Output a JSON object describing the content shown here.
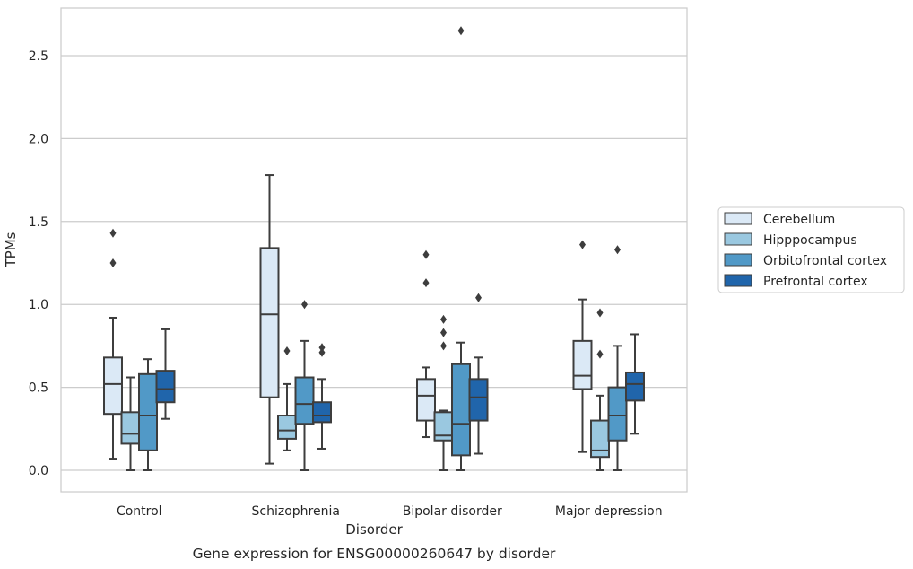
{
  "chart_data": {
    "type": "box",
    "title": "Gene expression for ENSG00000260647 by disorder",
    "xlabel": "Disorder",
    "ylabel": "TPMs",
    "ylim": [
      -0.13,
      2.79
    ],
    "yticks": [
      0.0,
      0.5,
      1.0,
      1.5,
      2.0,
      2.5
    ],
    "ytick_labels": [
      "0.0",
      "0.5",
      "1.0",
      "1.5",
      "2.0",
      "2.5"
    ],
    "grid": "horizontal",
    "legend_position": "right",
    "categories": [
      "Control",
      "Schizophrenia",
      "Bipolar disorder",
      "Major depression"
    ],
    "series": [
      {
        "name": "Cerebellum",
        "color": "#dbe9f6",
        "boxes": [
          {
            "whislo": 0.07,
            "q1": 0.34,
            "med": 0.52,
            "q3": 0.68,
            "whishi": 0.92,
            "fliers": [
              1.25,
              1.43
            ]
          },
          {
            "whislo": 0.04,
            "q1": 0.44,
            "med": 0.94,
            "q3": 1.34,
            "whishi": 1.78,
            "fliers": []
          },
          {
            "whislo": 0.2,
            "q1": 0.3,
            "med": 0.45,
            "q3": 0.55,
            "whishi": 0.62,
            "fliers": [
              1.13,
              1.3
            ]
          },
          {
            "whislo": 0.11,
            "q1": 0.49,
            "med": 0.57,
            "q3": 0.78,
            "whishi": 1.03,
            "fliers": [
              1.36
            ]
          }
        ]
      },
      {
        "name": "Hipppocampus",
        "color": "#9ac8e0",
        "boxes": [
          {
            "whislo": 0.0,
            "q1": 0.16,
            "med": 0.22,
            "q3": 0.35,
            "whishi": 0.56,
            "fliers": []
          },
          {
            "whislo": 0.12,
            "q1": 0.19,
            "med": 0.24,
            "q3": 0.33,
            "whishi": 0.52,
            "fliers": [
              0.72
            ]
          },
          {
            "whislo": 0.0,
            "q1": 0.18,
            "med": 0.21,
            "q3": 0.35,
            "whishi": 0.36,
            "fliers": [
              0.75,
              0.83,
              0.91
            ]
          },
          {
            "whislo": 0.0,
            "q1": 0.08,
            "med": 0.12,
            "q3": 0.3,
            "whishi": 0.45,
            "fliers": [
              0.7,
              0.95
            ]
          }
        ]
      },
      {
        "name": "Orbitofrontal cortex",
        "color": "#5199c7",
        "boxes": [
          {
            "whislo": 0.0,
            "q1": 0.12,
            "med": 0.33,
            "q3": 0.58,
            "whishi": 0.67,
            "fliers": []
          },
          {
            "whislo": 0.0,
            "q1": 0.28,
            "med": 0.4,
            "q3": 0.56,
            "whishi": 0.78,
            "fliers": [
              1.0
            ]
          },
          {
            "whislo": 0.0,
            "q1": 0.09,
            "med": 0.28,
            "q3": 0.64,
            "whishi": 0.77,
            "fliers": [
              2.65
            ]
          },
          {
            "whislo": 0.0,
            "q1": 0.18,
            "med": 0.33,
            "q3": 0.5,
            "whishi": 0.75,
            "fliers": [
              1.33
            ]
          }
        ]
      },
      {
        "name": "Prefrontal cortex",
        "color": "#2065ab",
        "boxes": [
          {
            "whislo": 0.31,
            "q1": 0.41,
            "med": 0.49,
            "q3": 0.6,
            "whishi": 0.85,
            "fliers": []
          },
          {
            "whislo": 0.13,
            "q1": 0.29,
            "med": 0.33,
            "q3": 0.41,
            "whishi": 0.55,
            "fliers": [
              0.71,
              0.74
            ]
          },
          {
            "whislo": 0.1,
            "q1": 0.3,
            "med": 0.44,
            "q3": 0.55,
            "whishi": 0.68,
            "fliers": [
              1.04
            ]
          },
          {
            "whislo": 0.22,
            "q1": 0.42,
            "med": 0.52,
            "q3": 0.59,
            "whishi": 0.82,
            "fliers": []
          }
        ]
      }
    ]
  }
}
